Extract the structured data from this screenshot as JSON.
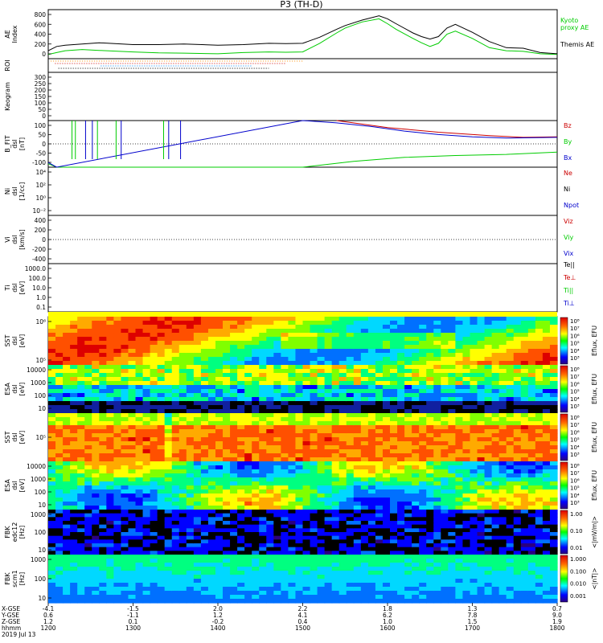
{
  "title": "P3 (TH-D)",
  "chart_data": [
    {
      "type": "line",
      "ylabel": "AE Index",
      "ylim": [
        0,
        800
      ],
      "yticks": [
        "800",
        "600",
        "400",
        "200",
        "0"
      ],
      "series": [
        {
          "name": "Kyoto proxy AE",
          "color": "#00cc00",
          "x": [
            1200,
            1210,
            1220,
            1240,
            1260,
            1300,
            1330,
            1360,
            1400,
            1430,
            1460,
            1480,
            1500,
            1520,
            1540,
            1550,
            1570,
            1590,
            1600,
            1610,
            1630,
            1640,
            1650,
            1660,
            1670,
            1680,
            1700,
            1720,
            1740,
            1760,
            1780,
            1800
          ],
          "values": [
            70,
            100,
            130,
            150,
            135,
            110,
            95,
            90,
            80,
            100,
            110,
            105,
            110,
            250,
            420,
            500,
            600,
            650,
            570,
            480,
            330,
            260,
            200,
            250,
            400,
            450,
            330,
            180,
            130,
            120,
            80,
            70
          ]
        },
        {
          "name": "Themis AE",
          "color": "#000000",
          "x": [
            1200,
            1210,
            1220,
            1240,
            1260,
            1300,
            1330,
            1360,
            1400,
            1430,
            1460,
            1480,
            1500,
            1520,
            1540,
            1550,
            1570,
            1590,
            1600,
            1610,
            1630,
            1640,
            1650,
            1660,
            1670,
            1680,
            1700,
            1720,
            1740,
            1760,
            1780,
            1800
          ],
          "values": [
            130,
            200,
            220,
            240,
            260,
            230,
            230,
            240,
            220,
            230,
            250,
            245,
            250,
            350,
            480,
            540,
            630,
            700,
            650,
            570,
            420,
            360,
            320,
            360,
            500,
            560,
            430,
            280,
            180,
            170,
            100,
            80
          ]
        }
      ]
    },
    {
      "type": "other",
      "ylabel": "ROI"
    },
    {
      "type": "other",
      "ylabel": "Keogram",
      "yticks": [
        "300",
        "250",
        "200",
        "150",
        "100",
        "50",
        "0"
      ]
    },
    {
      "type": "line",
      "ylabel": "B_FIT dsl [nT]",
      "ylim": [
        -100,
        100
      ],
      "yticks": [
        "100",
        "50",
        "0",
        "-50",
        "-100"
      ],
      "series": [
        {
          "name": "Bz",
          "color": "#cc0000",
          "x": [
            1540,
            1600,
            1660,
            1720,
            1760,
            1800
          ],
          "values": [
            100,
            70,
            50,
            35,
            28,
            30
          ]
        },
        {
          "name": "By",
          "color": "#00cc00",
          "x": [
            1200,
            1210,
            1500,
            1560,
            1620,
            1680,
            1740,
            1800
          ],
          "values": [
            -85,
            -100,
            -100,
            -75,
            -58,
            -50,
            -45,
            -35
          ]
        },
        {
          "name": "Bx",
          "color": "#0000cc",
          "x": [
            1200,
            1210,
            1500,
            1540,
            1580,
            1620,
            1660,
            1700,
            1740,
            1800
          ],
          "values": [
            -80,
            -100,
            100,
            90,
            75,
            55,
            40,
            30,
            25,
            28
          ]
        }
      ]
    },
    {
      "type": "line",
      "ylabel": "Ni dsl [1/cc]",
      "yticks": [
        "10⁴",
        "10²",
        "10⁰",
        "10⁻²"
      ],
      "series": [
        {
          "name": "Ne",
          "color": "#cc0000"
        },
        {
          "name": "Ni",
          "color": "#000000"
        },
        {
          "name": "Npot",
          "color": "#0000cc"
        }
      ]
    },
    {
      "type": "line",
      "ylabel": "Vi dsl [km/s]",
      "ylim": [
        -400,
        400
      ],
      "yticks": [
        "400",
        "200",
        "0",
        "-200",
        "-400"
      ],
      "series": [
        {
          "name": "Viz"
        },
        {
          "name": "Viy"
        },
        {
          "name": "Vix"
        }
      ]
    },
    {
      "type": "line",
      "ylabel": "Ti dsl [eV]",
      "yticks": [
        "1000.0",
        "100.0",
        "10.0",
        "1.0",
        "0.1"
      ],
      "series": [
        {
          "name": "Te||"
        },
        {
          "name": "Te⊥"
        },
        {
          "name": "Ti||"
        },
        {
          "name": "Ti⊥"
        }
      ]
    },
    {
      "type": "heatmap",
      "ylabel": "SST dsl [eV]",
      "yticks": [
        "10⁶",
        "10⁵"
      ],
      "colorbar": [
        "10⁸",
        "10⁷",
        "10⁶",
        "10⁵",
        "10⁴",
        "10³"
      ],
      "zlabel": "Eflux, EFU"
    },
    {
      "type": "heatmap",
      "ylabel": "ESA dsl [eV]",
      "yticks": [
        "10000",
        "1000",
        "100",
        "10"
      ],
      "colorbar": [
        "10⁸",
        "10⁷",
        "10⁶",
        "10⁵",
        "10⁴",
        "10³"
      ],
      "zlabel": "Eflux, EFU"
    },
    {
      "type": "heatmap",
      "ylabel": "SST dsl [eV]",
      "yticks": [
        "10⁵"
      ],
      "colorbar": [
        "10⁸",
        "10⁷",
        "10⁶",
        "10⁵",
        "10⁴",
        "10³"
      ],
      "zlabel": "Eflux, EFU"
    },
    {
      "type": "heatmap",
      "ylabel": "ESA dsl [eV]",
      "yticks": [
        "10000",
        "1000",
        "100",
        "10"
      ],
      "colorbar": [
        "10⁸",
        "10⁷",
        "10⁶",
        "10⁵",
        "10⁴",
        "10³"
      ],
      "zlabel": "Eflux, EFU"
    },
    {
      "type": "heatmap",
      "ylabel": "FBK edc12 [Hz]",
      "yticks": [
        "1000",
        "100",
        "10"
      ],
      "colorbar": [
        "1.00",
        "0.10",
        "0.01"
      ],
      "zlabel": "<|mV/m|>"
    },
    {
      "type": "heatmap",
      "ylabel": "FBK scm1 [Hz]",
      "yticks": [
        "1000",
        "100",
        "10"
      ],
      "colorbar": [
        "1.000",
        "0.100",
        "0.010",
        "0.001"
      ],
      "zlabel": "<|nT|>"
    }
  ],
  "xaxis": {
    "row_labels": [
      "X-GSE",
      "Y-GSE",
      "Z-GSE",
      "hhmm",
      "2019 Jul 13"
    ],
    "ticks": [
      {
        "x": 1200,
        "rows": [
          "-4.1",
          "0.6",
          "1.2",
          "1200"
        ]
      },
      {
        "x": 1300,
        "rows": [
          "-1.5",
          "-1.1",
          "0.1",
          "1300"
        ]
      },
      {
        "x": 1400,
        "rows": [
          "2.0",
          "1.2",
          "-0.2",
          "1400"
        ]
      },
      {
        "x": 1500,
        "rows": [
          "2.2",
          "4.1",
          "0.4",
          "1500"
        ]
      },
      {
        "x": 1600,
        "rows": [
          "1.8",
          "6.2",
          "1.0",
          "1600"
        ]
      },
      {
        "x": 1700,
        "rows": [
          "1.3",
          "7.8",
          "1.5",
          "1700"
        ]
      },
      {
        "x": 1800,
        "rows": [
          "0.7",
          "9.0",
          "1.9",
          "1800"
        ]
      }
    ]
  },
  "legends": {
    "ae": [
      "Kyoto",
      "proxy AE",
      "Themis AE"
    ],
    "b": [
      "Bz",
      "By",
      "Bx"
    ],
    "n": [
      "Ne",
      "Ni",
      "Npot"
    ],
    "v": [
      "Viz",
      "Viy",
      "Vix"
    ],
    "t": [
      "Te||",
      "Te⊥",
      "Ti||",
      "Ti⊥"
    ]
  },
  "colors": {
    "red": "#cc0000",
    "green": "#00cc00",
    "blue": "#0000cc"
  }
}
